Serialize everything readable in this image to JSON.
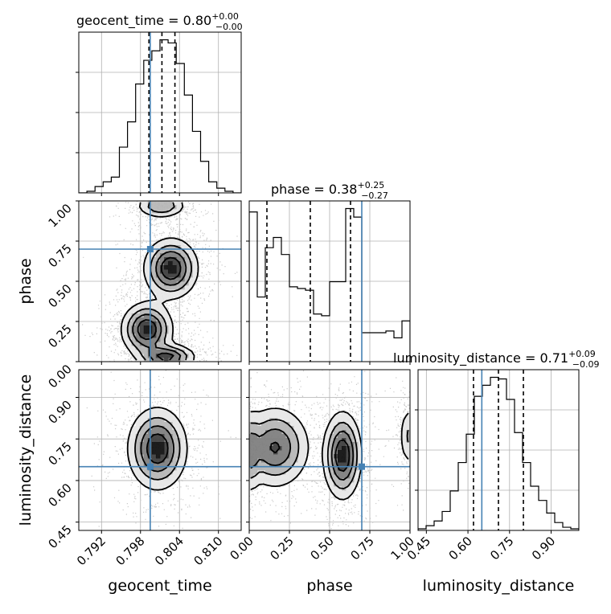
{
  "chart_data": {
    "type": "corner",
    "parameters": [
      "geocent_time",
      "phase",
      "luminosity_distance"
    ],
    "injection": {
      "geocent_time": 0.7995,
      "phase": 0.7,
      "luminosity_distance": 0.65,
      "color": "#4682b4"
    },
    "titles": [
      {
        "param": "geocent_time",
        "prefix": "geocent_time = 0.80",
        "plus": "+0.00",
        "minus": "−0.00"
      },
      {
        "param": "phase",
        "prefix": "phase = 0.38",
        "plus": "+0.25",
        "minus": "−0.27"
      },
      {
        "param": "luminosity_distance",
        "prefix": "luminosity_distance = 0.71",
        "plus": "+0.09",
        "minus": "−0.09"
      }
    ],
    "axes": {
      "geocent_time": {
        "range": [
          0.7885,
          0.8135
        ],
        "ticks": [
          "0.792",
          "0.798",
          "0.804",
          "0.810"
        ],
        "tick_values": [
          0.792,
          0.798,
          0.804,
          0.81
        ]
      },
      "phase": {
        "range": [
          0.0,
          1.0
        ],
        "ticks": [
          "0.00",
          "0.25",
          "0.50",
          "0.75",
          "1.00"
        ],
        "tick_values": [
          0.0,
          0.25,
          0.5,
          0.75,
          1.0
        ]
      },
      "luminosity_distance": {
        "range": [
          0.42,
          1.0
        ],
        "ticks": [
          "0.45",
          "0.60",
          "0.75",
          "0.90"
        ],
        "tick_values": [
          0.45,
          0.6,
          0.75,
          0.9
        ]
      }
    },
    "axis_labels": {
      "geocent_time": "geocent_time",
      "phase": "phase",
      "luminosity_distance": "luminosity_distance"
    },
    "histograms": {
      "geocent_time": {
        "edges": [
          0.7885,
          0.78975,
          0.791,
          0.79225,
          0.7935,
          0.79475,
          0.796,
          0.79725,
          0.7985,
          0.79975,
          0.801,
          0.80225,
          0.8035,
          0.80475,
          0.806,
          0.80725,
          0.8085,
          0.80975,
          0.811,
          0.81225,
          0.8135
        ],
        "counts": [
          0.0,
          0.01,
          0.04,
          0.07,
          0.1,
          0.29,
          0.45,
          0.69,
          0.84,
          0.9,
          0.97,
          0.95,
          0.82,
          0.62,
          0.39,
          0.2,
          0.07,
          0.03,
          0.01,
          0.0
        ],
        "quantile_lines": [
          0.7993,
          0.8013,
          0.8033
        ]
      },
      "phase": {
        "edges": [
          0.0,
          0.05,
          0.1,
          0.15,
          0.2,
          0.25,
          0.3,
          0.35,
          0.4,
          0.45,
          0.5,
          0.55,
          0.6,
          0.65,
          0.7,
          0.75,
          0.8,
          0.85,
          0.9,
          0.95,
          1.0
        ],
        "counts": [
          0.88,
          0.38,
          0.67,
          0.73,
          0.63,
          0.44,
          0.43,
          0.42,
          0.28,
          0.27,
          0.47,
          0.47,
          0.9,
          0.85,
          0.17,
          0.17,
          0.17,
          0.18,
          0.14,
          0.24
        ],
        "quantile_lines": [
          0.11,
          0.38,
          0.63
        ]
      },
      "luminosity_distance": {
        "edges": [
          0.42,
          0.449,
          0.478,
          0.507,
          0.536,
          0.565,
          0.594,
          0.623,
          0.652,
          0.681,
          0.71,
          0.739,
          0.768,
          0.797,
          0.826,
          0.855,
          0.884,
          0.913,
          0.942,
          0.971,
          1.0
        ],
        "counts": [
          0.01,
          0.03,
          0.06,
          0.12,
          0.25,
          0.43,
          0.61,
          0.85,
          0.92,
          0.97,
          0.96,
          0.83,
          0.62,
          0.43,
          0.28,
          0.19,
          0.11,
          0.05,
          0.02,
          0.01
        ],
        "quantile_lines": [
          0.62,
          0.71,
          0.8
        ]
      }
    },
    "densities": {
      "phase_vs_geocent_time": {
        "x_param": "geocent_time",
        "y_param": "phase",
        "blobs": [
          {
            "x": 0.8027,
            "y": 0.58,
            "sx": 0.0021,
            "sy": 0.095,
            "w": 1.0
          },
          {
            "x": 0.799,
            "y": 0.2,
            "sx": 0.002,
            "sy": 0.085,
            "w": 1.0
          },
          {
            "x": 0.8021,
            "y": 0.03,
            "sx": 0.0022,
            "sy": 0.04,
            "w": 0.85
          },
          {
            "x": 0.8012,
            "y": 0.97,
            "sx": 0.002,
            "sy": 0.04,
            "w": 0.55
          }
        ]
      },
      "luminosity_distance_vs_geocent_time": {
        "x_param": "geocent_time",
        "y_param": "luminosity_distance",
        "blobs": [
          {
            "x": 0.8006,
            "y": 0.715,
            "sx": 0.0023,
            "sy": 0.075,
            "w": 1.0
          }
        ]
      },
      "luminosity_distance_vs_phase": {
        "x_param": "phase",
        "y_param": "luminosity_distance",
        "blobs": [
          {
            "x": 0.16,
            "y": 0.72,
            "sx": 0.11,
            "sy": 0.075,
            "w": 0.8
          },
          {
            "x": 0.01,
            "y": 0.7,
            "sx": 0.03,
            "sy": 0.075,
            "w": 0.45
          },
          {
            "x": 0.58,
            "y": 0.69,
            "sx": 0.06,
            "sy": 0.08,
            "w": 1.0
          },
          {
            "x": 0.99,
            "y": 0.76,
            "sx": 0.03,
            "sy": 0.06,
            "w": 0.35
          }
        ]
      }
    },
    "grid": true,
    "colors": {
      "hist": "#000000",
      "injection": "#4682b4",
      "grid": "#b0b0b0"
    }
  }
}
